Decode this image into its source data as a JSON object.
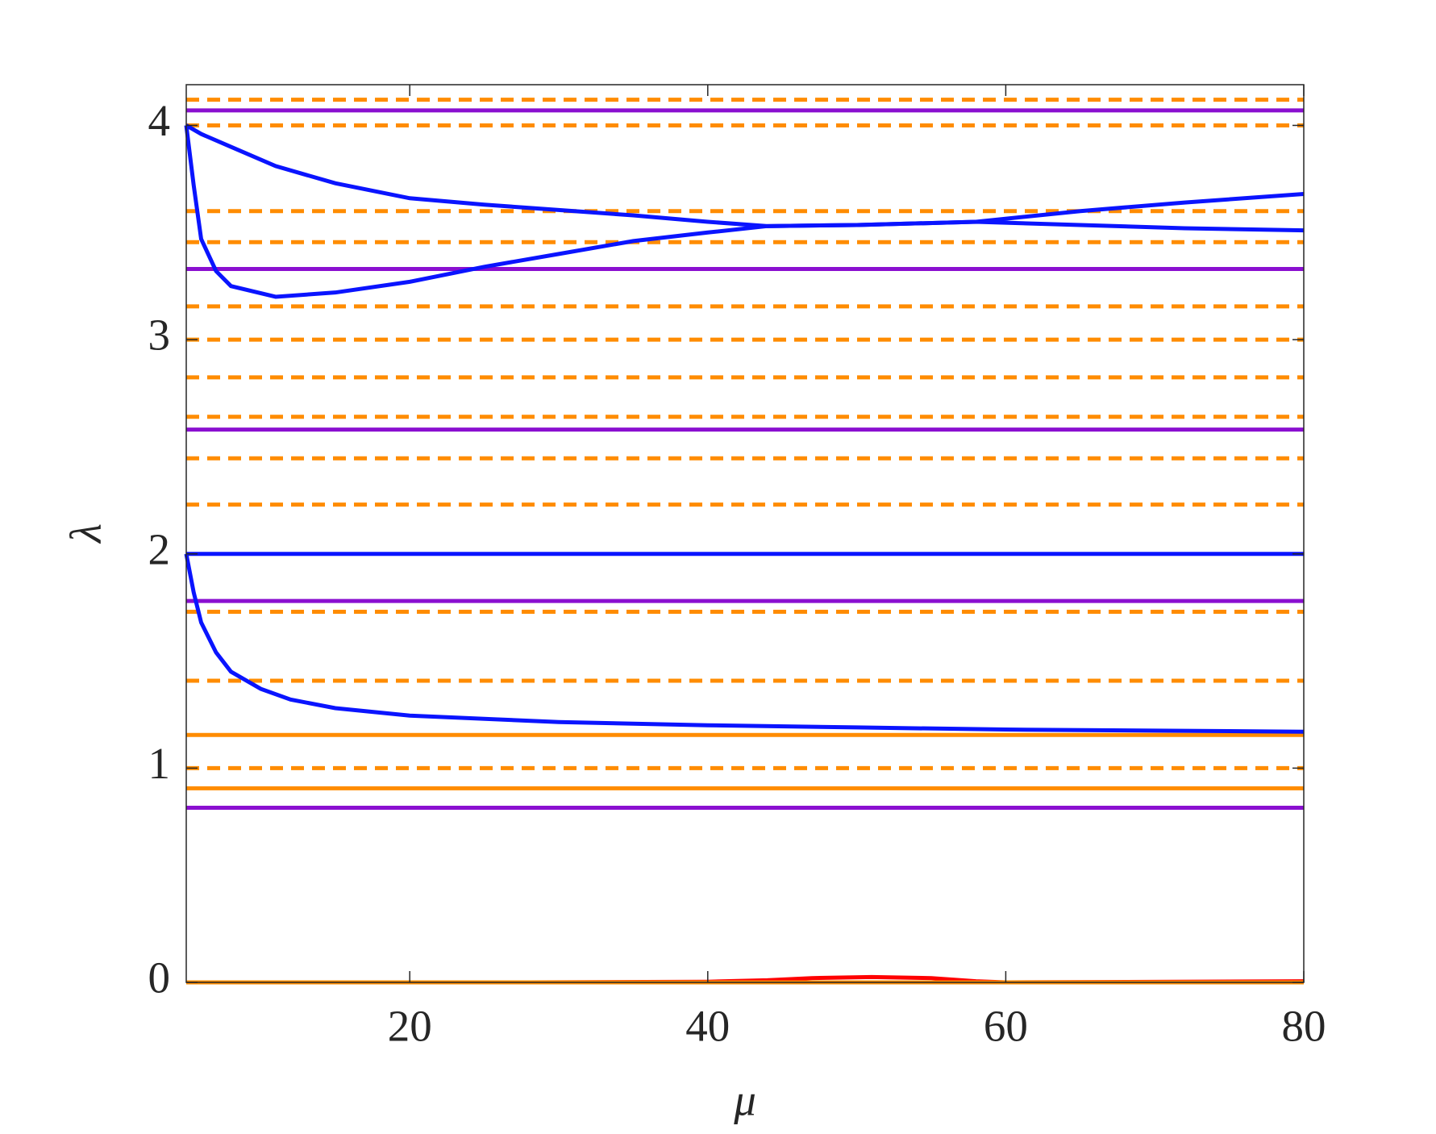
{
  "chart_data": {
    "type": "line",
    "xlabel": "μ",
    "ylabel": "λ",
    "xlim": [
      5,
      80
    ],
    "ylim": [
      0,
      4.19
    ],
    "xticks": [
      20,
      40,
      60,
      80
    ],
    "yticks": [
      0,
      1,
      2,
      3,
      4
    ],
    "series": [
      {
        "color": "#ff8c00",
        "style": "dashed",
        "x": [
          5,
          80
        ],
        "values": [
          4.12,
          4.12
        ]
      },
      {
        "color": "#ff8c00",
        "style": "dashed",
        "x": [
          5,
          80
        ],
        "values": [
          4.0,
          4.0
        ]
      },
      {
        "color": "#ff8c00",
        "style": "dashed",
        "x": [
          5,
          80
        ],
        "values": [
          3.6,
          3.6
        ]
      },
      {
        "color": "#ff8c00",
        "style": "dashed",
        "x": [
          5,
          80
        ],
        "values": [
          3.455,
          3.455
        ]
      },
      {
        "color": "#ff8c00",
        "style": "dashed",
        "x": [
          5,
          80
        ],
        "values": [
          3.155,
          3.155
        ]
      },
      {
        "color": "#ff8c00",
        "style": "dashed",
        "x": [
          5,
          80
        ],
        "values": [
          3.0,
          3.0
        ]
      },
      {
        "color": "#ff8c00",
        "style": "dashed",
        "x": [
          5,
          80
        ],
        "values": [
          2.824,
          2.824
        ]
      },
      {
        "color": "#ff8c00",
        "style": "dashed",
        "x": [
          5,
          80
        ],
        "values": [
          2.64,
          2.64
        ]
      },
      {
        "color": "#ff8c00",
        "style": "dashed",
        "x": [
          5,
          80
        ],
        "values": [
          2.446,
          2.446
        ]
      },
      {
        "color": "#ff8c00",
        "style": "dashed",
        "x": [
          5,
          80
        ],
        "values": [
          2.23,
          2.23
        ]
      },
      {
        "color": "#ff8c00",
        "style": "dashed",
        "x": [
          5,
          80
        ],
        "values": [
          1.73,
          1.73
        ]
      },
      {
        "color": "#ff8c00",
        "style": "dashed",
        "x": [
          5,
          80
        ],
        "values": [
          1.408,
          1.408
        ]
      },
      {
        "color": "#ff8c00",
        "style": "dashed",
        "x": [
          5,
          80
        ],
        "values": [
          1.0,
          1.0
        ]
      },
      {
        "color": "#ff8c00",
        "style": "solid",
        "x": [
          5,
          80
        ],
        "values": [
          1.155,
          1.155
        ]
      },
      {
        "color": "#ff8c00",
        "style": "solid",
        "x": [
          5,
          80
        ],
        "values": [
          0.906,
          0.906
        ]
      },
      {
        "color": "#8a0fd0",
        "style": "solid",
        "x": [
          5,
          80
        ],
        "values": [
          4.07,
          4.07
        ]
      },
      {
        "color": "#8a0fd0",
        "style": "solid",
        "x": [
          5,
          80
        ],
        "values": [
          3.33,
          3.33
        ]
      },
      {
        "color": "#8a0fd0",
        "style": "solid",
        "x": [
          5,
          80
        ],
        "values": [
          2.58,
          2.58
        ]
      },
      {
        "color": "#8a0fd0",
        "style": "solid",
        "x": [
          5,
          80
        ],
        "values": [
          1.78,
          1.78
        ]
      },
      {
        "color": "#8a0fd0",
        "style": "solid",
        "x": [
          5,
          80
        ],
        "values": [
          0.815,
          0.815
        ]
      },
      {
        "color": "#0a14ff",
        "style": "solid",
        "x": [
          5,
          6,
          8,
          11,
          15,
          20,
          25,
          30,
          35,
          40,
          44,
          50,
          58,
          65,
          72,
          80
        ],
        "values": [
          4.0,
          3.96,
          3.9,
          3.81,
          3.73,
          3.66,
          3.63,
          3.605,
          3.58,
          3.55,
          3.53,
          3.535,
          3.55,
          3.6,
          3.64,
          3.68
        ]
      },
      {
        "color": "#0a14ff",
        "style": "solid",
        "x": [
          5,
          5.5,
          6,
          7,
          8,
          11,
          15,
          20,
          25,
          30,
          35,
          40,
          44,
          50,
          58,
          65,
          72,
          80
        ],
        "values": [
          4.0,
          3.72,
          3.47,
          3.32,
          3.25,
          3.2,
          3.22,
          3.27,
          3.34,
          3.4,
          3.46,
          3.5,
          3.53,
          3.535,
          3.55,
          3.535,
          3.52,
          3.51
        ]
      },
      {
        "color": "#0a14ff",
        "style": "solid",
        "x": [
          5,
          80
        ],
        "values": [
          2.0,
          2.0
        ]
      },
      {
        "color": "#0a14ff",
        "style": "solid",
        "x": [
          5,
          5.5,
          6,
          7,
          8,
          10,
          12,
          15,
          20,
          30,
          40,
          50,
          60,
          70,
          80
        ],
        "values": [
          2.0,
          1.82,
          1.68,
          1.54,
          1.45,
          1.37,
          1.32,
          1.28,
          1.245,
          1.215,
          1.2,
          1.19,
          1.18,
          1.175,
          1.17
        ]
      },
      {
        "color": "#ff0000",
        "style": "solid",
        "x": [
          5,
          28,
          40,
          44,
          47,
          51,
          55,
          58,
          60,
          80
        ],
        "values": [
          0,
          0,
          0.003,
          0.01,
          0.02,
          0.025,
          0.02,
          0.005,
          0,
          0.005
        ]
      },
      {
        "color": "#ff8c00",
        "style": "solid",
        "x": [
          5,
          80
        ],
        "values": [
          0,
          0
        ]
      }
    ]
  }
}
